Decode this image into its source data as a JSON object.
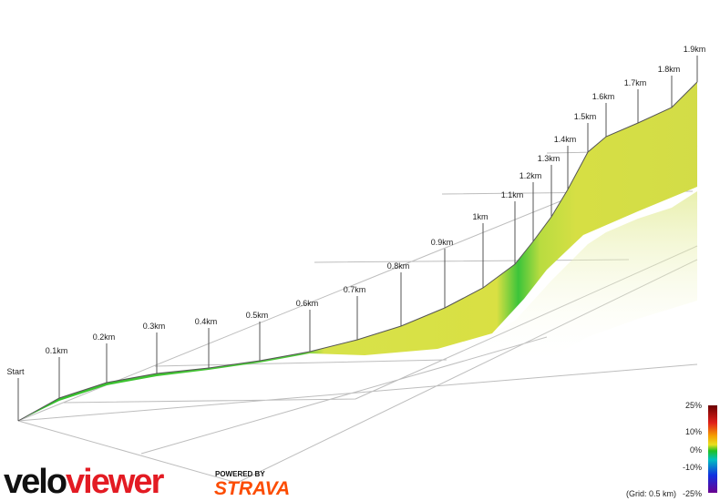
{
  "markers": [
    {
      "label": "Start"
    },
    {
      "label": "0.1km"
    },
    {
      "label": "0.2km"
    },
    {
      "label": "0.3km"
    },
    {
      "label": "0.4km"
    },
    {
      "label": "0.5km"
    },
    {
      "label": "0.6km"
    },
    {
      "label": "0.7km"
    },
    {
      "label": "0.8km"
    },
    {
      "label": "0.9km"
    },
    {
      "label": "1km"
    },
    {
      "label": "1.1km"
    },
    {
      "label": "1.2km"
    },
    {
      "label": "1.3km"
    },
    {
      "label": "1.4km"
    },
    {
      "label": "1.5km"
    },
    {
      "label": "1.6km"
    },
    {
      "label": "1.7km"
    },
    {
      "label": "1.8km"
    },
    {
      "label": "1.9km"
    }
  ],
  "legend": {
    "labels": [
      "25%",
      "10%",
      "0%",
      "-10%",
      "-25%"
    ],
    "grid_note": "(Grid: 0.5 km)"
  },
  "logo": {
    "part1": "velo",
    "part2": "viewer",
    "powered_by": "POWERED BY",
    "strava": "STRAVA"
  }
}
